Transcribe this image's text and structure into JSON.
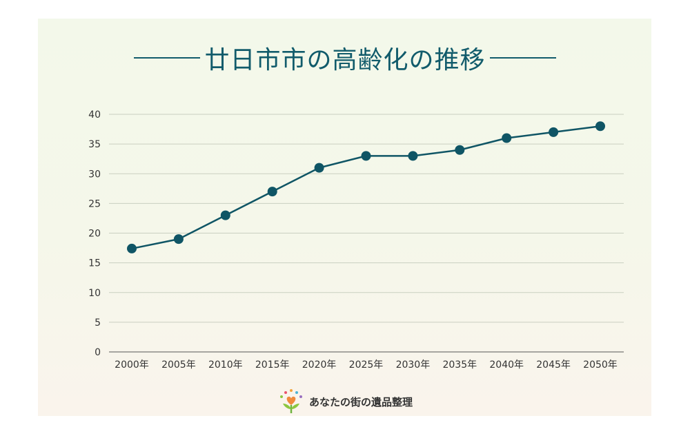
{
  "colors": {
    "accent": "#115b6b",
    "line": "#0f5565",
    "grid": "#c9cfc0",
    "axis": "#555555"
  },
  "header": {
    "title": "廿日市市の高齢化の推移"
  },
  "brand": {
    "name": "あなたの街の遺品整理",
    "icon": "heart-sprout-logo-icon"
  },
  "chart_data": {
    "type": "line",
    "title": "廿日市市の高齢化の推移",
    "xlabel": "",
    "ylabel": "",
    "categories": [
      "2000年",
      "2005年",
      "2010年",
      "2015年",
      "2020年",
      "2025年",
      "2030年",
      "2035年",
      "2040年",
      "2045年",
      "2050年"
    ],
    "values": [
      17.4,
      19,
      23,
      27,
      31,
      33,
      33,
      34,
      36,
      37,
      38
    ],
    "ylim": [
      0,
      40
    ],
    "yticks": [
      0,
      5,
      10,
      15,
      20,
      25,
      30,
      35,
      40
    ],
    "grid": true,
    "legend": "none",
    "markers": true
  }
}
